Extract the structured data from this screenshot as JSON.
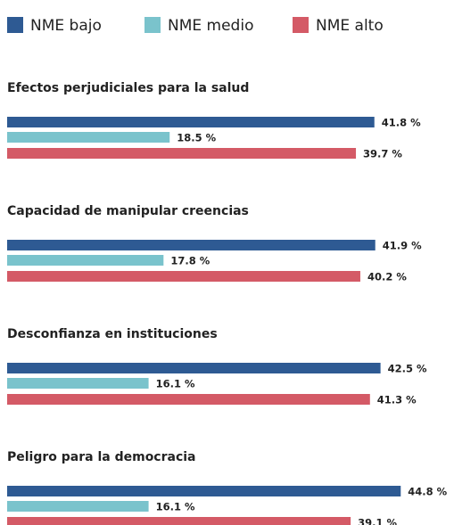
{
  "chart_data": {
    "type": "bar",
    "orientation": "horizontal",
    "categories": [
      "Efectos perjudiciales para la salud",
      "Capacidad de manipular creencias",
      "Desconfianza en instituciones",
      "Peligro para la democracia"
    ],
    "series": [
      {
        "name": "NME bajo",
        "color": "#2e5a93",
        "values": [
          41.8,
          41.9,
          42.5,
          44.8
        ],
        "value_labels": [
          "41.8 %",
          "41.9 %",
          "42.5 %",
          "44.8 %"
        ]
      },
      {
        "name": "NME medio",
        "color": "#7ac3cc",
        "values": [
          18.5,
          17.8,
          16.1,
          16.1
        ],
        "value_labels": [
          "18.5 %",
          "17.8 %",
          "16.1 %",
          "16.1 %"
        ]
      },
      {
        "name": "NME alto",
        "color": "#d45a66",
        "values": [
          39.7,
          40.2,
          41.3,
          39.1
        ],
        "value_labels": [
          "39.7 %",
          "40.2 %",
          "41.3 %",
          "39.1 %"
        ]
      }
    ],
    "legend": "top"
  }
}
